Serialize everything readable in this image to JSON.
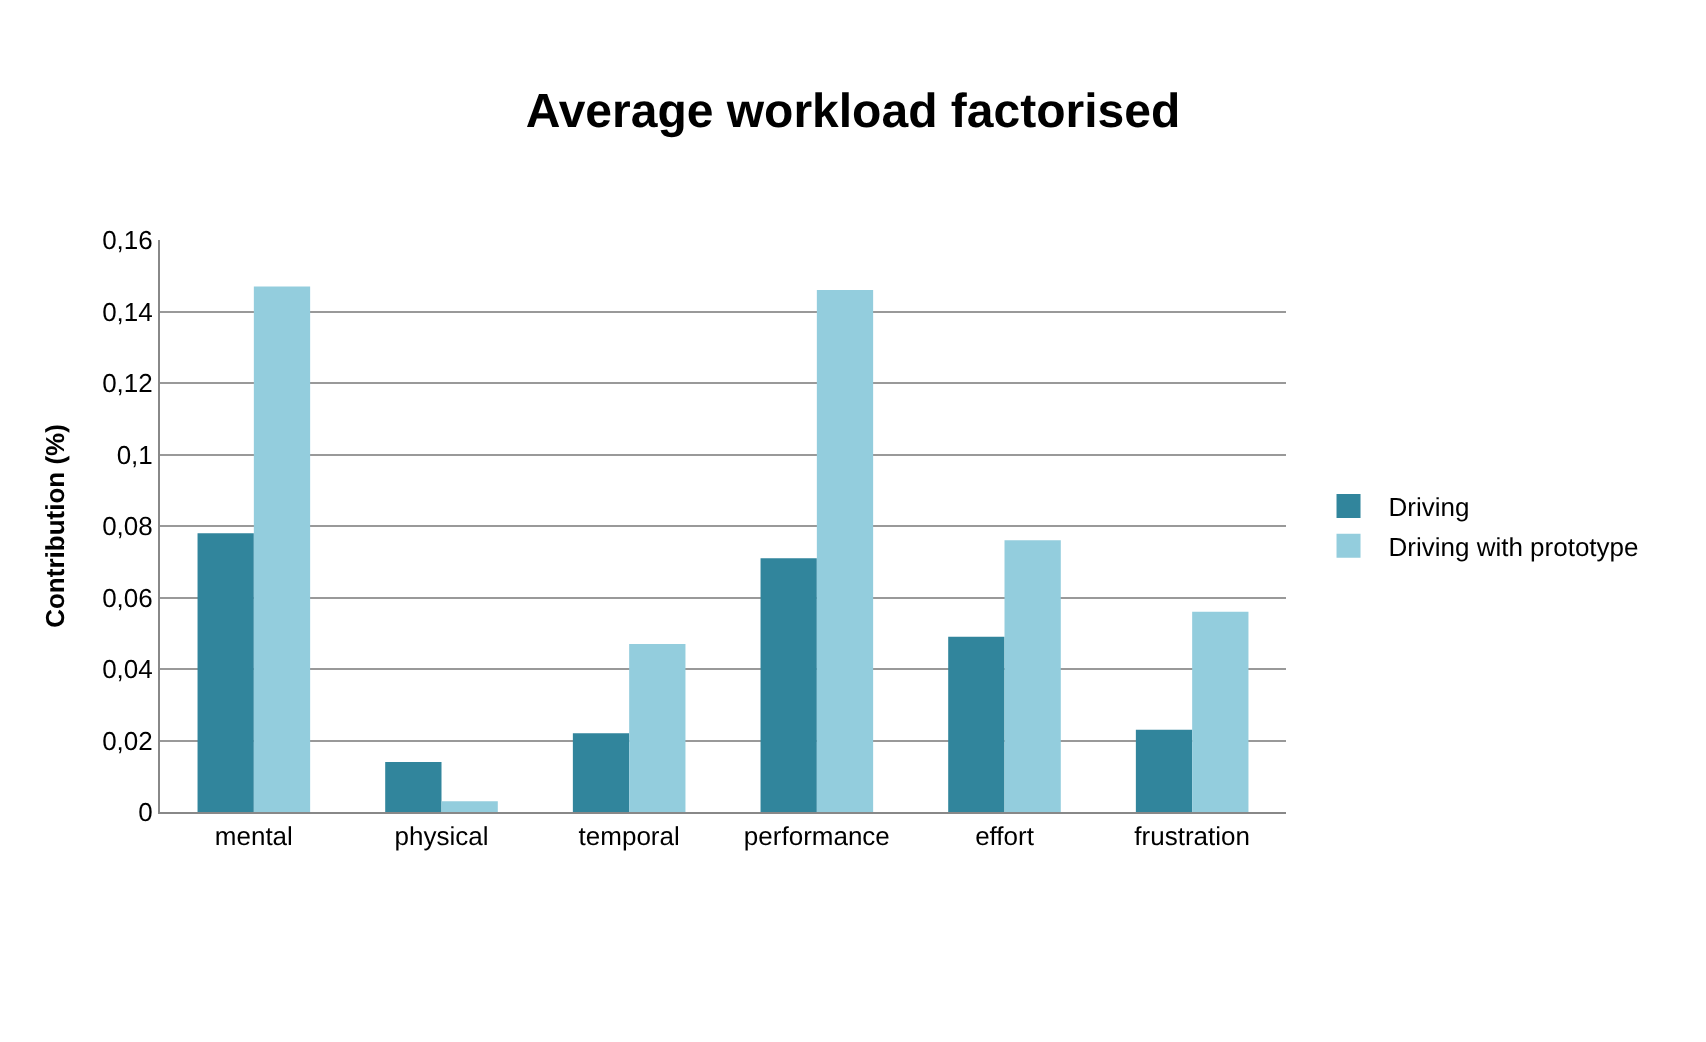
{
  "chart_data": {
    "type": "bar",
    "title": "Average workload factorised",
    "ylabel": "Contribution (%)",
    "categories": [
      "mental",
      "physical",
      "temporal",
      "performance",
      "effort",
      "frustration"
    ],
    "series": [
      {
        "name": "Driving",
        "color": "#31859c",
        "values": [
          0.078,
          0.014,
          0.022,
          0.071,
          0.049,
          0.023
        ]
      },
      {
        "name": "Driving with prototype",
        "color": "#93cddd",
        "values": [
          0.147,
          0.003,
          0.047,
          0.146,
          0.076,
          0.056
        ]
      }
    ],
    "ylim": [
      0,
      0.16
    ],
    "yticks": [
      {
        "value": 0,
        "label": "0"
      },
      {
        "value": 0.02,
        "label": "0,02"
      },
      {
        "value": 0.04,
        "label": "0,04"
      },
      {
        "value": 0.06,
        "label": "0,06"
      },
      {
        "value": 0.08,
        "label": "0,08"
      },
      {
        "value": 0.1,
        "label": "0,1"
      },
      {
        "value": 0.12,
        "label": "0,12"
      },
      {
        "value": 0.14,
        "label": "0,14"
      },
      {
        "value": 0.16,
        "label": "0,16"
      }
    ],
    "grid": "y",
    "legend": "right"
  }
}
